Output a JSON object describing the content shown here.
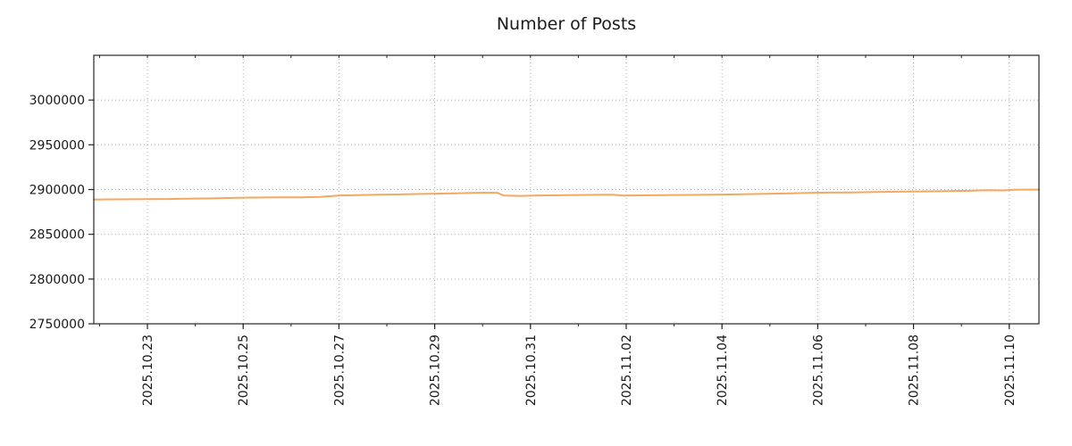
{
  "chart_data": {
    "type": "line",
    "title": "Number of Posts",
    "xlabel": "",
    "ylabel": "",
    "legend": "none",
    "grid": "dotted",
    "line_color": "#f4a860",
    "grid_color": "#b3b3b3",
    "axis_color": "#262626",
    "xlim": [
      -1.12,
      18.62
    ],
    "ylim": [
      2750000,
      3050000
    ],
    "x_tick_positions": [
      0,
      2,
      4,
      6,
      8,
      10,
      12,
      14,
      16,
      18
    ],
    "x_tick_labels": [
      "2025.10.23",
      "2025.10.25",
      "2025.10.27",
      "2025.10.29",
      "2025.10.31",
      "2025.11.02",
      "2025.11.04",
      "2025.11.06",
      "2025.11.08",
      "2025.11.10"
    ],
    "x_minor_step": 1,
    "y_ticks": [
      2750000,
      2800000,
      2850000,
      2900000,
      2950000,
      3000000
    ],
    "y_tick_labels": [
      "2750000",
      "2800000",
      "2850000",
      "2900000",
      "2950000",
      "3000000"
    ],
    "series": [
      {
        "name": "Number of Posts",
        "points": [
          [
            -1.12,
            2888800
          ],
          [
            -0.8,
            2889000
          ],
          [
            -0.4,
            2889100
          ],
          [
            0.0,
            2889300
          ],
          [
            0.4,
            2889400
          ],
          [
            0.8,
            2889700
          ],
          [
            1.2,
            2890000
          ],
          [
            1.6,
            2890400
          ],
          [
            2.0,
            2890900
          ],
          [
            2.4,
            2891100
          ],
          [
            2.8,
            2891200
          ],
          [
            3.2,
            2891300
          ],
          [
            3.6,
            2891800
          ],
          [
            4.0,
            2893300
          ],
          [
            4.4,
            2893800
          ],
          [
            4.8,
            2894200
          ],
          [
            5.2,
            2894500
          ],
          [
            5.6,
            2895000
          ],
          [
            6.0,
            2895400
          ],
          [
            6.4,
            2895800
          ],
          [
            6.8,
            2896300
          ],
          [
            7.0,
            2896400
          ],
          [
            7.3,
            2896400
          ],
          [
            7.45,
            2893200
          ],
          [
            7.8,
            2892900
          ],
          [
            8.2,
            2893400
          ],
          [
            8.6,
            2893600
          ],
          [
            9.0,
            2893900
          ],
          [
            9.4,
            2894100
          ],
          [
            9.7,
            2894200
          ],
          [
            9.95,
            2893200
          ],
          [
            10.3,
            2893500
          ],
          [
            10.8,
            2893800
          ],
          [
            11.3,
            2894000
          ],
          [
            11.8,
            2894200
          ],
          [
            12.3,
            2894600
          ],
          [
            12.8,
            2895100
          ],
          [
            13.3,
            2895600
          ],
          [
            13.8,
            2896200
          ],
          [
            14.2,
            2896600
          ],
          [
            14.7,
            2896800
          ],
          [
            15.2,
            2897200
          ],
          [
            15.7,
            2897600
          ],
          [
            16.2,
            2897900
          ],
          [
            16.7,
            2898200
          ],
          [
            17.2,
            2898600
          ],
          [
            17.5,
            2899300
          ],
          [
            17.7,
            2899100
          ],
          [
            17.9,
            2899000
          ],
          [
            18.1,
            2899800
          ],
          [
            18.62,
            2899900
          ]
        ]
      }
    ]
  }
}
